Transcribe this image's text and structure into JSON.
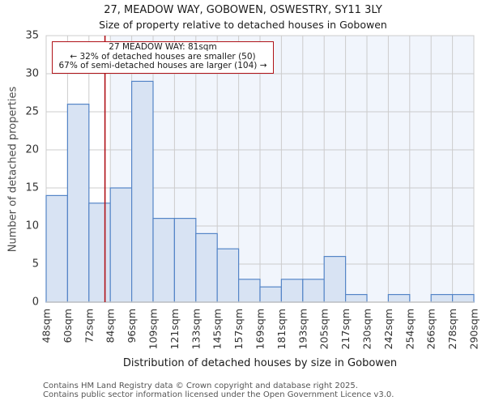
{
  "chart_data": {
    "type": "bar",
    "title": "27, MEADOW WAY, GOBOWEN, OSWESTRY, SY11 3LY",
    "subtitle": "Size of property relative to detached houses in Gobowen",
    "xlabel": "Distribution of detached houses by size in Gobowen",
    "ylabel": "Number of detached properties",
    "bin_edges": [
      48,
      60,
      72,
      84,
      96,
      109,
      121,
      133,
      145,
      157,
      169,
      181,
      193,
      205,
      217,
      230,
      242,
      254,
      266,
      278,
      290
    ],
    "x_tick_labels": [
      "48sqm",
      "60sqm",
      "72sqm",
      "84sqm",
      "96sqm",
      "109sqm",
      "121sqm",
      "133sqm",
      "145sqm",
      "157sqm",
      "169sqm",
      "181sqm",
      "193sqm",
      "205sqm",
      "217sqm",
      "230sqm",
      "242sqm",
      "254sqm",
      "266sqm",
      "278sqm",
      "290sqm"
    ],
    "values": [
      14,
      26,
      13,
      15,
      29,
      11,
      11,
      9,
      7,
      3,
      2,
      3,
      3,
      6,
      1,
      0,
      1,
      0,
      1,
      1
    ],
    "y_ticks": [
      0,
      5,
      10,
      15,
      20,
      25,
      30,
      35
    ],
    "ylim": [
      0,
      35
    ],
    "grid": true,
    "marker_value": 81,
    "shade_from_value": 84,
    "annotation": {
      "line1": "27 MEADOW WAY: 81sqm",
      "line2": "← 32% of detached houses are smaller (50)",
      "line3": "67% of semi-detached houses are larger (104) →"
    },
    "colors": {
      "bar_fill": "#d8e3f3",
      "bar_edge": "#5585c7",
      "marker_line": "#b01218",
      "callout_border": "#b01218",
      "shade_region": "#f1f5fc",
      "gridline": "#cccccc",
      "axis_line": "#c4c4c4",
      "tick_text": "#333333"
    }
  },
  "footer": {
    "line1": "Contains HM Land Registry data © Crown copyright and database right 2025.",
    "line2": "Contains public sector information licensed under the Open Government Licence v3.0."
  }
}
